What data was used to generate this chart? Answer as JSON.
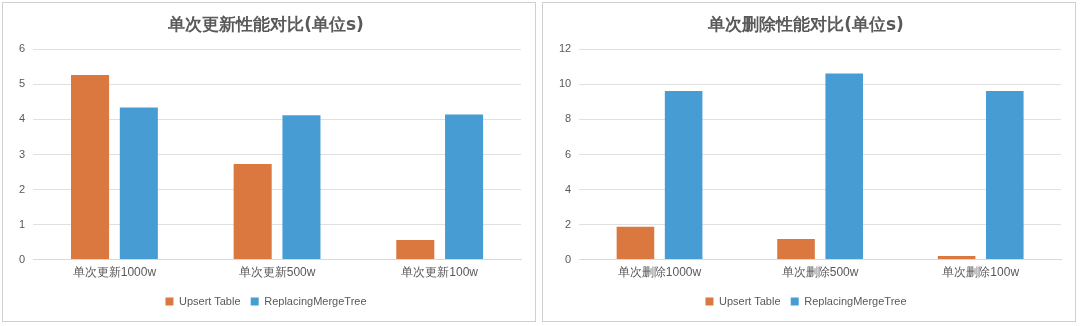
{
  "chart_data": [
    {
      "type": "bar",
      "title": "单次更新性能对比(单位s)",
      "categories": [
        "单次更新1000w",
        "单次更新500w",
        "单次更新100w"
      ],
      "series": [
        {
          "name": "Upsert Table",
          "color": "#db7840",
          "values": [
            5.27,
            2.73,
            0.56
          ]
        },
        {
          "name": "ReplacingMergeTree",
          "color": "#479dd3",
          "values": [
            4.34,
            4.12,
            4.14
          ]
        }
      ],
      "ylim": [
        0,
        6
      ],
      "yticks": [
        0,
        1,
        2,
        3,
        4,
        5,
        6
      ],
      "grid": "y",
      "legend": "bottom"
    },
    {
      "type": "bar",
      "title": "单次删除性能对比(单位s)",
      "categories": [
        "单次删除1000w",
        "单次删除500w",
        "单次删除100w"
      ],
      "series": [
        {
          "name": "Upsert Table",
          "color": "#db7840",
          "values": [
            1.88,
            1.18,
            0.2
          ]
        },
        {
          "name": "ReplacingMergeTree",
          "color": "#479dd3",
          "values": [
            9.62,
            10.62,
            9.62
          ]
        }
      ],
      "ylim": [
        0,
        12
      ],
      "yticks": [
        0,
        2,
        4,
        6,
        8,
        10,
        12
      ],
      "grid": "y",
      "legend": "bottom"
    }
  ]
}
